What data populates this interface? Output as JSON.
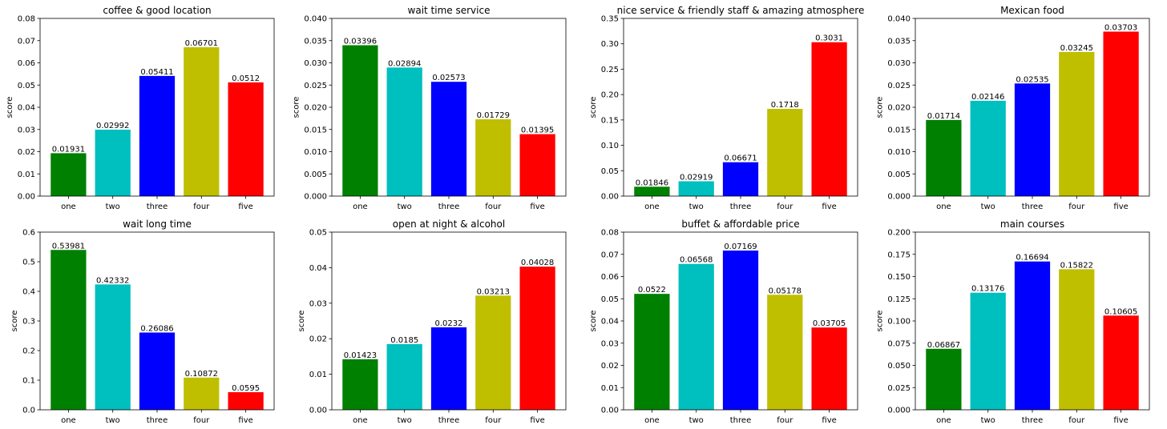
{
  "chart_data": [
    {
      "type": "bar",
      "title": "coffee & good location",
      "ylabel": "score",
      "categories": [
        "one",
        "two",
        "three",
        "four",
        "five"
      ],
      "values": [
        0.01931,
        0.02992,
        0.05411,
        0.06701,
        0.0512
      ],
      "value_labels": [
        "0.01931",
        "0.02992",
        "0.05411",
        "0.06701",
        "0.0512"
      ],
      "ylim": [
        0,
        0.08
      ],
      "yticks": [
        "0.00",
        "0.01",
        "0.02",
        "0.03",
        "0.04",
        "0.05",
        "0.06",
        "0.07",
        "0.08"
      ],
      "colors": [
        "#008000",
        "#00bfbf",
        "#0000ff",
        "#bfbf00",
        "#ff0000"
      ]
    },
    {
      "type": "bar",
      "title": "wait time service",
      "ylabel": "score",
      "categories": [
        "one",
        "two",
        "three",
        "four",
        "five"
      ],
      "values": [
        0.03396,
        0.02894,
        0.02573,
        0.01729,
        0.01395
      ],
      "value_labels": [
        "0.03396",
        "0.02894",
        "0.02573",
        "0.01729",
        "0.01395"
      ],
      "ylim": [
        0,
        0.04
      ],
      "yticks": [
        "0.000",
        "0.005",
        "0.010",
        "0.015",
        "0.020",
        "0.025",
        "0.030",
        "0.035",
        "0.040"
      ],
      "colors": [
        "#008000",
        "#00bfbf",
        "#0000ff",
        "#bfbf00",
        "#ff0000"
      ]
    },
    {
      "type": "bar",
      "title": "nice service & friendly staff & amazing atmosphere",
      "ylabel": "score",
      "categories": [
        "one",
        "two",
        "three",
        "four",
        "five"
      ],
      "values": [
        0.01846,
        0.02919,
        0.06671,
        0.1718,
        0.3031
      ],
      "value_labels": [
        "0.01846",
        "0.02919",
        "0.06671",
        "0.1718",
        "0.3031"
      ],
      "ylim": [
        0,
        0.35
      ],
      "yticks": [
        "0.00",
        "0.05",
        "0.10",
        "0.15",
        "0.20",
        "0.25",
        "0.30",
        "0.35"
      ],
      "colors": [
        "#008000",
        "#00bfbf",
        "#0000ff",
        "#bfbf00",
        "#ff0000"
      ]
    },
    {
      "type": "bar",
      "title": "Mexican food",
      "ylabel": "score",
      "categories": [
        "one",
        "two",
        "three",
        "four",
        "five"
      ],
      "values": [
        0.01714,
        0.02146,
        0.02535,
        0.03245,
        0.03703
      ],
      "value_labels": [
        "0.01714",
        "0.02146",
        "0.02535",
        "0.03245",
        "0.03703"
      ],
      "ylim": [
        0,
        0.04
      ],
      "yticks": [
        "0.000",
        "0.005",
        "0.010",
        "0.015",
        "0.020",
        "0.025",
        "0.030",
        "0.035",
        "0.040"
      ],
      "colors": [
        "#008000",
        "#00bfbf",
        "#0000ff",
        "#bfbf00",
        "#ff0000"
      ]
    },
    {
      "type": "bar",
      "title": "wait long time",
      "ylabel": "score",
      "categories": [
        "one",
        "two",
        "three",
        "four",
        "five"
      ],
      "values": [
        0.53981,
        0.42332,
        0.26086,
        0.10872,
        0.0595
      ],
      "value_labels": [
        "0.53981",
        "0.42332",
        "0.26086",
        "0.10872",
        "0.0595"
      ],
      "ylim": [
        0,
        0.6
      ],
      "yticks": [
        "0.0",
        "0.1",
        "0.2",
        "0.3",
        "0.4",
        "0.5",
        "0.6"
      ],
      "colors": [
        "#008000",
        "#00bfbf",
        "#0000ff",
        "#bfbf00",
        "#ff0000"
      ]
    },
    {
      "type": "bar",
      "title": "open at night & alcohol",
      "ylabel": "score",
      "categories": [
        "one",
        "two",
        "three",
        "four",
        "five"
      ],
      "values": [
        0.01423,
        0.0185,
        0.0232,
        0.03213,
        0.04028
      ],
      "value_labels": [
        "0.01423",
        "0.0185",
        "0.0232",
        "0.03213",
        "0.04028"
      ],
      "ylim": [
        0,
        0.05
      ],
      "yticks": [
        "0.00",
        "0.01",
        "0.02",
        "0.03",
        "0.04",
        "0.05"
      ],
      "colors": [
        "#008000",
        "#00bfbf",
        "#0000ff",
        "#bfbf00",
        "#ff0000"
      ]
    },
    {
      "type": "bar",
      "title": "buffet & affordable price",
      "ylabel": "score",
      "categories": [
        "one",
        "two",
        "three",
        "four",
        "five"
      ],
      "values": [
        0.0522,
        0.06568,
        0.07169,
        0.05178,
        0.03705
      ],
      "value_labels": [
        "0.0522",
        "0.06568",
        "0.07169",
        "0.05178",
        "0.03705"
      ],
      "ylim": [
        0,
        0.08
      ],
      "yticks": [
        "0.00",
        "0.01",
        "0.02",
        "0.03",
        "0.04",
        "0.05",
        "0.06",
        "0.07",
        "0.08"
      ],
      "colors": [
        "#008000",
        "#00bfbf",
        "#0000ff",
        "#bfbf00",
        "#ff0000"
      ]
    },
    {
      "type": "bar",
      "title": "main courses",
      "ylabel": "score",
      "categories": [
        "one",
        "two",
        "three",
        "four",
        "five"
      ],
      "values": [
        0.06867,
        0.13176,
        0.16694,
        0.15822,
        0.10605
      ],
      "value_labels": [
        "0.06867",
        "0.13176",
        "0.16694",
        "0.15822",
        "0.10605"
      ],
      "ylim": [
        0,
        0.2
      ],
      "yticks": [
        "0.000",
        "0.025",
        "0.050",
        "0.075",
        "0.100",
        "0.125",
        "0.150",
        "0.175",
        "0.200"
      ],
      "colors": [
        "#008000",
        "#00bfbf",
        "#0000ff",
        "#bfbf00",
        "#ff0000"
      ]
    }
  ]
}
